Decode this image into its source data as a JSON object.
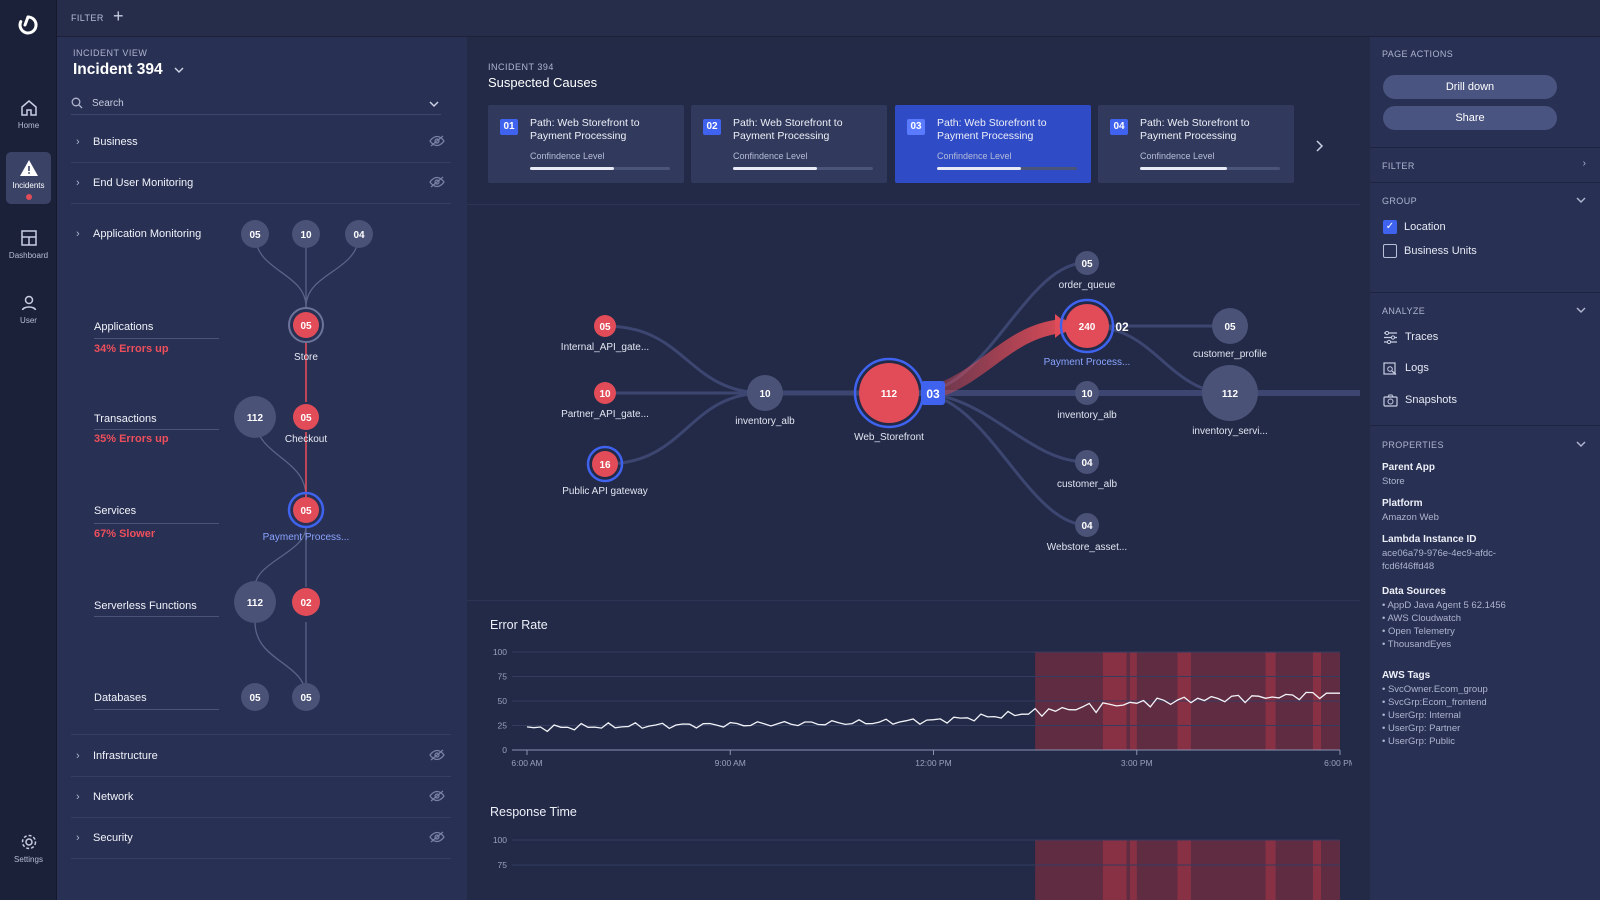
{
  "topbar": {
    "filter_label": "FILTER",
    "add_label": "+"
  },
  "rail": [
    {
      "label": "Home",
      "icon": "home-icon"
    },
    {
      "label": "Incidents",
      "icon": "alert-icon"
    },
    {
      "label": "Dashboard",
      "icon": "dashboard-icon"
    },
    {
      "label": "User",
      "icon": "user-icon"
    },
    {
      "label": "Settings",
      "icon": "settings-icon"
    }
  ],
  "left": {
    "view_label": "INCIDENT VIEW",
    "incident_title": "Incident 394",
    "search_placeholder": "Search",
    "sections_top": [
      {
        "name": "Business"
      },
      {
        "name": "End User Monitoring"
      }
    ],
    "app_monitoring": "Application Monitoring",
    "levels": [
      {
        "name": "Applications",
        "status": "34% Errors up"
      },
      {
        "name": "Transactions",
        "status": "35% Errors up"
      },
      {
        "name": "Services",
        "status": "67% Slower"
      },
      {
        "name": "Serverless Functions",
        "status": ""
      },
      {
        "name": "Databases",
        "status": ""
      }
    ],
    "tree_nodes": {
      "top": [
        "05",
        "10",
        "04"
      ],
      "store": {
        "value": "05",
        "label": "Store"
      },
      "txn_count": "112",
      "checkout": {
        "value": "05",
        "label": "Checkout"
      },
      "payment": {
        "value": "05",
        "label": "Payment Process..."
      },
      "sf_count": "112",
      "sf_err": "02",
      "db": [
        "05",
        "05"
      ]
    },
    "sections_bottom": [
      {
        "name": "Infrastructure"
      },
      {
        "name": "Network"
      },
      {
        "name": "Security"
      }
    ]
  },
  "main": {
    "incident_label": "INCIDENT 394",
    "title": "Suspected Causes",
    "causes": [
      {
        "num": "01",
        "title": "Path: Web Storefront to Payment Processing",
        "confidence_label": "Confindence Level",
        "confidence": 0.6
      },
      {
        "num": "02",
        "title": "Path: Web Storefront to Payment Processing",
        "confidence_label": "Confindence Level",
        "confidence": 0.6
      },
      {
        "num": "03",
        "title": "Path: Web Storefront to Payment Processing",
        "confidence_label": "Confindence Level",
        "confidence": 0.6
      },
      {
        "num": "04",
        "title": "Path: Web Storefront to Payment Processing",
        "confidence_label": "Confindence Level",
        "confidence": 0.62
      }
    ],
    "selected_cause": "03",
    "graph": {
      "nodes": [
        {
          "id": "internal",
          "value": "05",
          "label": "Internal_API_gate...",
          "kind": "err"
        },
        {
          "id": "partner",
          "value": "10",
          "label": "Partner_API_gate...",
          "kind": "err"
        },
        {
          "id": "public",
          "value": "16",
          "label": "Public API gateway",
          "kind": "err-ring"
        },
        {
          "id": "inv1",
          "value": "10",
          "label": "inventory_alb",
          "kind": "gray"
        },
        {
          "id": "web",
          "value": "112",
          "label": "Web_Storefront",
          "kind": "err-big"
        },
        {
          "id": "order",
          "value": "05",
          "label": "order_queue",
          "kind": "gray"
        },
        {
          "id": "payment",
          "value": "240",
          "label": "Payment Process...",
          "kind": "err-sel"
        },
        {
          "id": "inv2",
          "value": "10",
          "label": "inventory_alb",
          "kind": "gray"
        },
        {
          "id": "cust",
          "value": "04",
          "label": "customer_alb",
          "kind": "gray"
        },
        {
          "id": "webstore",
          "value": "04",
          "label": "Webstore_asset...",
          "kind": "gray"
        },
        {
          "id": "profile",
          "value": "05",
          "label": "customer_profile",
          "kind": "gray"
        },
        {
          "id": "invsvc",
          "value": "112",
          "label": "inventory_servi...",
          "kind": "gray-big"
        }
      ],
      "web_badge": "03",
      "payment_badge": "02"
    }
  },
  "chart_data": [
    {
      "type": "line",
      "title": "Error Rate",
      "x": [
        "6:00 AM",
        "7:00 AM",
        "8:00 AM",
        "9:00 AM",
        "10:00 AM",
        "11:00 AM",
        "12:00 PM",
        "1:00 PM",
        "2:00 PM",
        "3:00 PM",
        "4:00 PM",
        "5:00 PM",
        "6:00 PM"
      ],
      "xticks": [
        "6:00 AM",
        "9:00 AM",
        "12:00 PM",
        "3:00 PM",
        "6:00 PM"
      ],
      "yticks": [
        0,
        25,
        50,
        75,
        100
      ],
      "ylim": [
        0,
        100
      ],
      "series": [
        {
          "values": [
            22,
            24,
            25,
            26,
            27,
            28,
            30,
            35,
            42,
            48,
            52,
            54,
            58
          ]
        }
      ],
      "highlight_from": "1:30 PM"
    },
    {
      "type": "line",
      "title": "Response Time",
      "yticks": [
        75,
        100
      ],
      "ylim": [
        0,
        100
      ]
    }
  ],
  "right": {
    "page_actions": "PAGE ACTIONS",
    "buttons": [
      "Drill down",
      "Share"
    ],
    "filter": "FILTER",
    "group": "GROUP",
    "group_items": [
      {
        "label": "Location",
        "checked": true
      },
      {
        "label": "Business Units",
        "checked": false
      }
    ],
    "analyze": "ANALYZE",
    "analyze_items": [
      "Traces",
      "Logs",
      "Snapshots"
    ],
    "properties": "PROPERTIES",
    "parent_app_k": "Parent App",
    "parent_app_v": "Store",
    "platform_k": "Platform",
    "platform_v": "Amazon Web",
    "lambda_k": "Lambda Instance ID",
    "lambda_v1": "ace06a79-976e-4ec9-afdc-",
    "lambda_v2": "fcd6f46ffd48",
    "sources_k": "Data Sources",
    "sources": [
      "AppD Java Agent 5 62.1456",
      "AWS Cloudwatch",
      "Open Telemetry",
      "ThousandEyes"
    ],
    "tags_k": "AWS Tags",
    "tags": [
      "SvcOwner.Ecom_group",
      "SvcGrp:Ecom_frontend",
      "UserGrp: Internal",
      "UserGrp: Partner",
      "UserGrp: Public"
    ]
  },
  "colors": {
    "error": "#e14c58",
    "accent": "#3f63ef",
    "node": "#4a5277",
    "bg": "#232a45"
  }
}
